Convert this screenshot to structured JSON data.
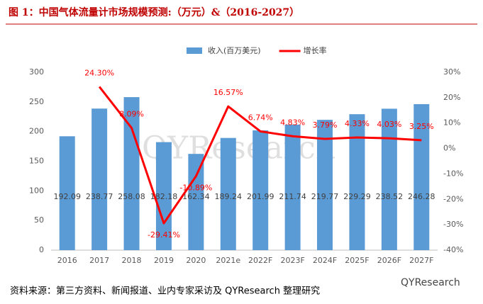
{
  "chart_data": {
    "type": "bar-line",
    "title": "图 1：中国气体流量计市场规模预测:（万元）&（2016-2027）",
    "source": "资料来源：第三方资料、新闻报道、业内专家采访及 QYResearch 整理研究",
    "watermark": "QYResearch",
    "logo": "QYResearch",
    "categories": [
      "2016",
      "2017",
      "2018",
      "2019",
      "2020",
      "2021e",
      "2022F",
      "2023F",
      "2024F",
      "2025F",
      "2026F",
      "2027F"
    ],
    "series": [
      {
        "name": "收入(百万美元)",
        "type": "bar",
        "color": "#5b9bd5",
        "values": [
          192.09,
          238.77,
          258.08,
          182.18,
          162.34,
          189.24,
          201.99,
          211.74,
          219.77,
          229.29,
          238.52,
          246.28
        ]
      },
      {
        "name": "增长率",
        "type": "line",
        "axis": "y2",
        "color": "#ff0000",
        "values": [
          null,
          24.3,
          8.09,
          -29.41,
          -10.89,
          16.57,
          6.74,
          4.83,
          3.79,
          4.33,
          4.03,
          3.25
        ],
        "value_labels": [
          null,
          "24.30%",
          "8.09%",
          "-29.41%",
          "-10.89%",
          "16.57%",
          "6.74%",
          "4.83%",
          "3.79%",
          "4.33%",
          "4.03%",
          "3.25%"
        ]
      }
    ],
    "ylim": [
      0,
      300
    ],
    "yticks": [
      0,
      50,
      100,
      150,
      200,
      250,
      300
    ],
    "y2lim": [
      -40,
      30
    ],
    "y2ticks": [
      {
        "value": -40,
        "label": "-40%"
      },
      {
        "value": -30,
        "label": "-30%"
      },
      {
        "value": -20,
        "label": "-20%"
      },
      {
        "value": -10,
        "label": "-10%"
      },
      {
        "value": 0,
        "label": "0%"
      },
      {
        "value": 10,
        "label": "10%"
      },
      {
        "value": 20,
        "label": "20%"
      },
      {
        "value": 30,
        "label": "30%"
      }
    ],
    "legend": "top"
  }
}
